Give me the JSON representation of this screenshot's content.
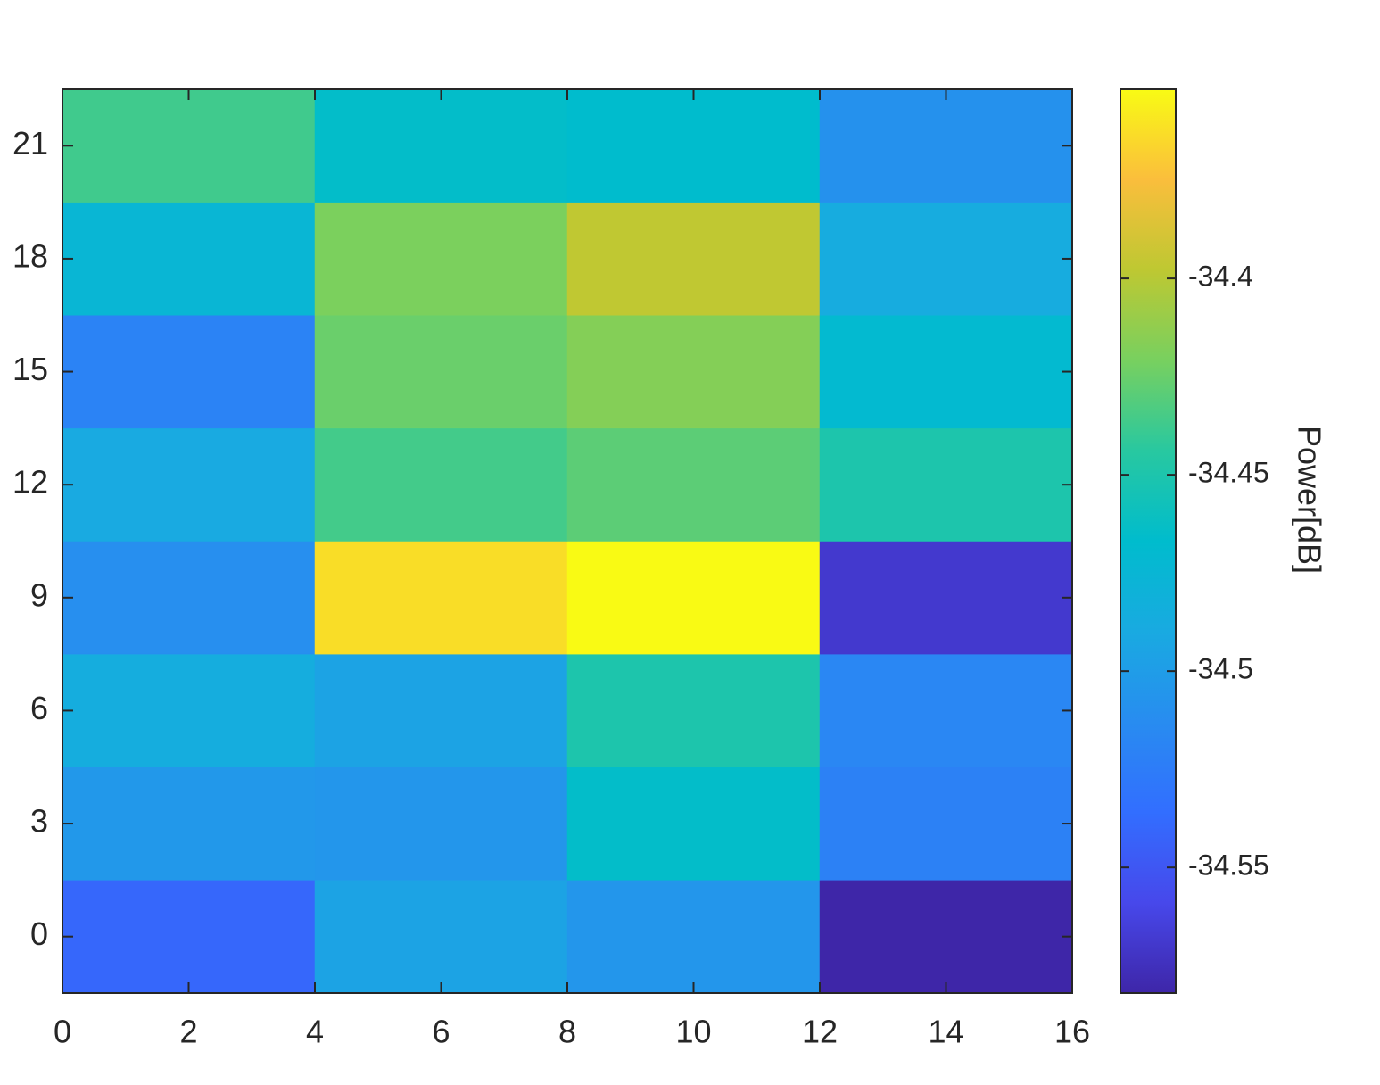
{
  "chart_data": {
    "type": "heatmap",
    "xbins": [
      0,
      4,
      8,
      12,
      16
    ],
    "y": [
      0,
      3,
      6,
      9,
      12,
      15,
      18,
      21
    ],
    "values": [
      [
        -34.54,
        -34.495,
        -34.505,
        -34.582
      ],
      [
        -34.504,
        -34.505,
        -34.465,
        -34.521
      ],
      [
        -34.486,
        -34.495,
        -34.45,
        -34.517
      ],
      [
        -34.511,
        -34.363,
        -34.352,
        -34.569
      ],
      [
        -34.49,
        -34.436,
        -34.429,
        -34.45
      ],
      [
        -34.52,
        -34.425,
        -34.417,
        -34.47
      ],
      [
        -34.475,
        -34.42,
        -34.397,
        -34.488
      ],
      [
        -34.437,
        -34.465,
        -34.467,
        -34.509
      ]
    ],
    "xlim": [
      0,
      16
    ],
    "xticks": [
      0,
      2,
      4,
      6,
      8,
      10,
      12,
      14,
      16
    ],
    "ylim": [
      -1.5,
      22.5
    ],
    "yticks": [
      0,
      3,
      6,
      9,
      12,
      15,
      18,
      21
    ],
    "colorbar": {
      "label": "Power[dB]",
      "clim": [
        -34.582,
        -34.3518
      ],
      "ticks": [
        {
          "value": -34.4,
          "label": "-34.4"
        },
        {
          "value": -34.45,
          "label": "-34.45"
        },
        {
          "value": -34.5,
          "label": "-34.5"
        },
        {
          "value": -34.55,
          "label": "-34.55"
        }
      ]
    },
    "colormap": [
      [
        62,
        38,
        168
      ],
      [
        71,
        72,
        235
      ],
      [
        50,
        110,
        255
      ],
      [
        40,
        140,
        240
      ],
      [
        25,
        170,
        225
      ],
      [
        0,
        188,
        205
      ],
      [
        40,
        200,
        160
      ],
      [
        120,
        208,
        95
      ],
      [
        190,
        200,
        50
      ],
      [
        250,
        190,
        60
      ],
      [
        249,
        251,
        20
      ]
    ]
  }
}
